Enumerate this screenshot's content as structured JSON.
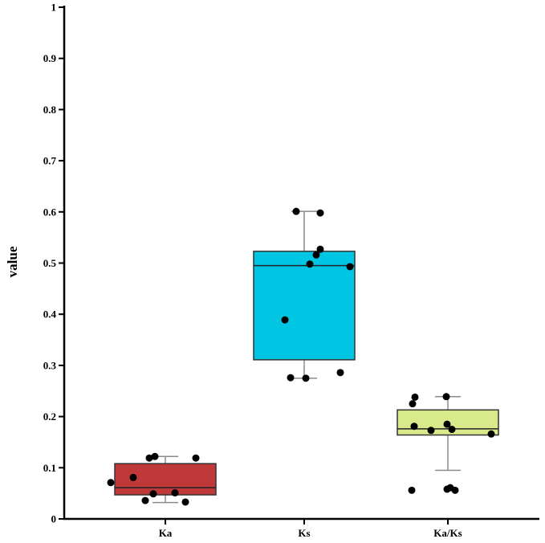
{
  "chart_data": {
    "type": "box",
    "title": "",
    "xlabel": "",
    "ylabel": "value",
    "ylim": [
      0,
      1
    ],
    "yticks": [
      "0",
      "0.1",
      "0.2",
      "0.3",
      "0.4",
      "0.5",
      "0.6",
      "0.7",
      "0.8",
      "0.9",
      "1"
    ],
    "grid": false,
    "legend": "none",
    "categories": [
      "Ka",
      "Ks",
      "Ka/Ks"
    ],
    "boxes": [
      {
        "category": "Ka",
        "color": "#c0393a",
        "whisker_low": 0.032,
        "q1": 0.047,
        "median": 0.061,
        "q3": 0.108,
        "whisker_high": 0.122,
        "points": [
          0.071,
          0.081,
          0.119,
          0.122,
          0.036,
          0.049,
          0.051,
          0.033,
          0.119
        ]
      },
      {
        "category": "Ks",
        "color": "#00c5e3",
        "whisker_low": 0.275,
        "q1": 0.311,
        "median": 0.495,
        "q3": 0.523,
        "whisker_high": 0.601,
        "points": [
          0.601,
          0.598,
          0.527,
          0.516,
          0.498,
          0.493,
          0.389,
          0.286,
          0.276,
          0.275
        ]
      },
      {
        "category": "Ka/Ks",
        "color": "#d8ea8a",
        "whisker_low": 0.095,
        "q1": 0.164,
        "median": 0.176,
        "q3": 0.213,
        "whisker_high": 0.239,
        "points": [
          0.238,
          0.225,
          0.181,
          0.173,
          0.185,
          0.175,
          0.166,
          0.239,
          0.056,
          0.058,
          0.061,
          0.056
        ]
      }
    ]
  }
}
